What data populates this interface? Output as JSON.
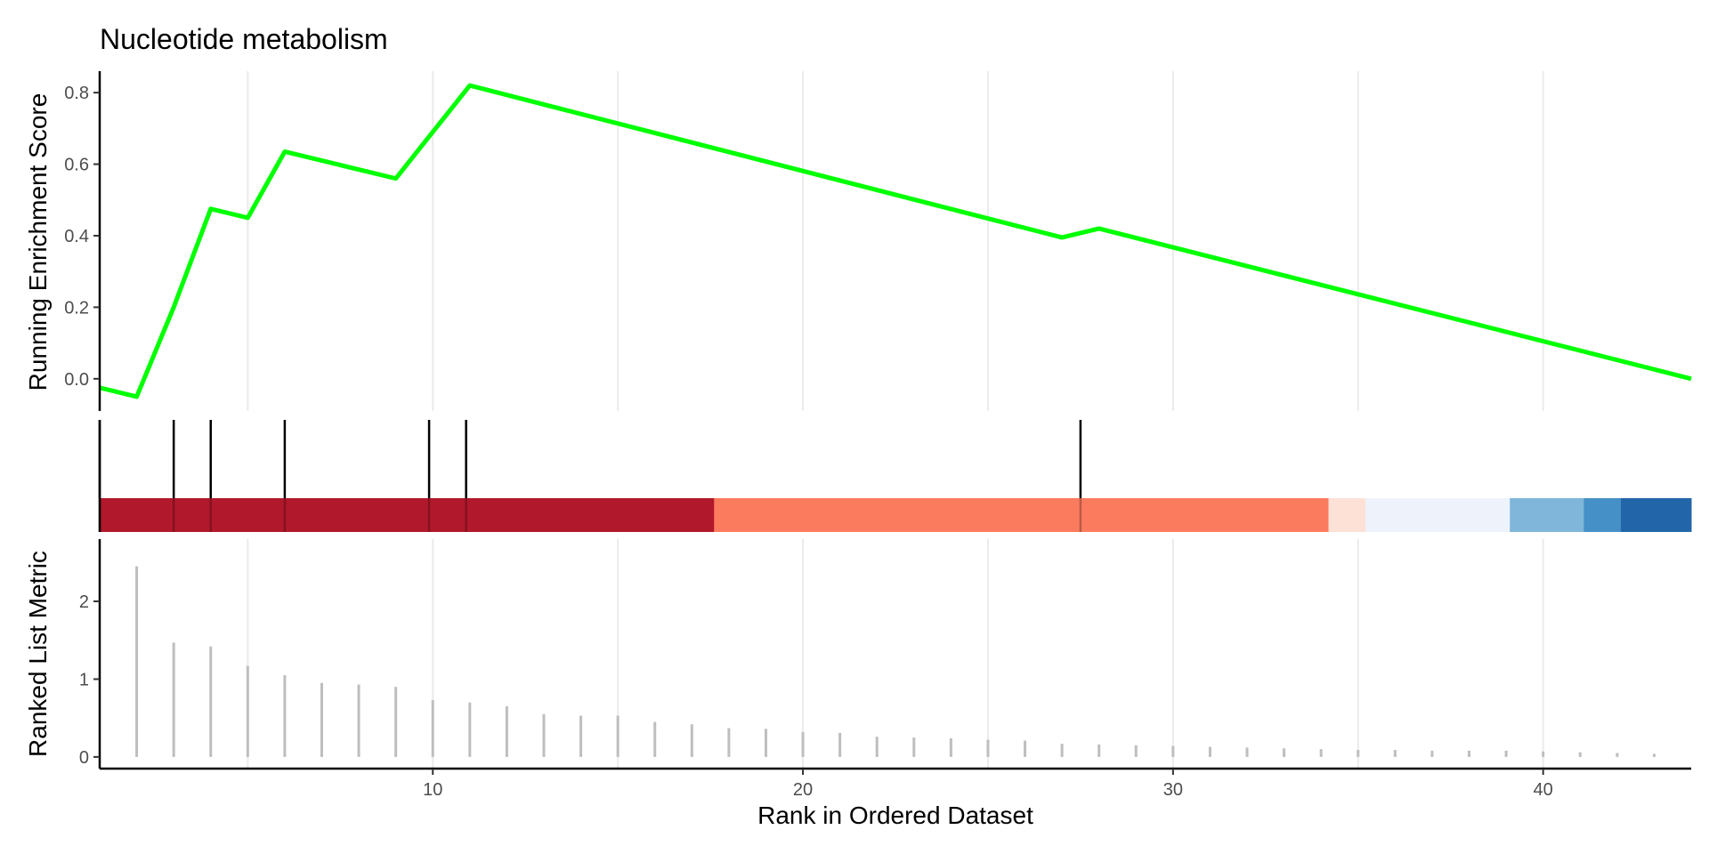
{
  "chart_data": {
    "type": "line",
    "title": "Nucleotide metabolism",
    "xlabel": "Rank in Ordered Dataset",
    "xlim": [
      1,
      44
    ],
    "x_ticks": [
      10,
      20,
      30,
      40
    ],
    "x_tick_labels": [
      "10",
      "20",
      "30",
      "40"
    ],
    "grid": "vertical",
    "panels": {
      "running_score": {
        "ylabel": "Running Enrichment Score",
        "ylim": [
          -0.09,
          0.86
        ],
        "y_ticks": [
          0.0,
          0.2,
          0.4,
          0.6,
          0.8
        ],
        "y_tick_labels": [
          "0.0",
          "0.2",
          "0.4",
          "0.6",
          "0.8"
        ],
        "line_color": "#00ff00",
        "x": [
          1,
          2,
          3,
          4,
          5,
          6,
          9,
          10,
          11,
          27,
          28,
          44
        ],
        "y": [
          -0.025,
          -0.05,
          0.2,
          0.475,
          0.45,
          0.635,
          0.56,
          0.69,
          0.82,
          0.395,
          0.42,
          0.0
        ]
      },
      "hits": {
        "positions": [
          1,
          3,
          4,
          6,
          9.9,
          10.9,
          27.5
        ],
        "color": "#000000"
      },
      "color_bar": {
        "segments": [
          {
            "from": 1,
            "to": 17.6,
            "color": "#b2182b"
          },
          {
            "from": 17.6,
            "to": 34.2,
            "color": "#fb7b5e"
          },
          {
            "from": 34.2,
            "to": 35.2,
            "color": "#fde1d6"
          },
          {
            "from": 35.2,
            "to": 39.1,
            "color": "#eef3fb"
          },
          {
            "from": 39.1,
            "to": 41.1,
            "color": "#7fb6da"
          },
          {
            "from": 41.1,
            "to": 42.1,
            "color": "#4590c7"
          },
          {
            "from": 42.1,
            "to": 44,
            "color": "#2266a9"
          }
        ]
      },
      "ranked_metric": {
        "ylabel": "Ranked List Metric",
        "ylim": [
          -0.15,
          2.8
        ],
        "y_ticks": [
          0,
          1,
          2
        ],
        "y_tick_labels": [
          "0",
          "1",
          "2"
        ],
        "bar_color": "#bebebe",
        "x": [
          2,
          3,
          4,
          5,
          6,
          7,
          8,
          9,
          10,
          11,
          12,
          13,
          14,
          15,
          16,
          17,
          18,
          19,
          20,
          21,
          22,
          23,
          24,
          25,
          26,
          27,
          28,
          29,
          30,
          31,
          32,
          33,
          34,
          35,
          36,
          37,
          38,
          39,
          40,
          41,
          42,
          43
        ],
        "values": [
          2.45,
          1.47,
          1.42,
          1.17,
          1.05,
          0.95,
          0.93,
          0.9,
          0.73,
          0.7,
          0.65,
          0.55,
          0.53,
          0.53,
          0.45,
          0.42,
          0.37,
          0.36,
          0.32,
          0.31,
          0.26,
          0.25,
          0.24,
          0.22,
          0.21,
          0.17,
          0.16,
          0.15,
          0.14,
          0.13,
          0.12,
          0.11,
          0.1,
          0.09,
          0.09,
          0.08,
          0.08,
          0.08,
          0.07,
          0.06,
          0.05,
          0.04
        ]
      }
    }
  }
}
